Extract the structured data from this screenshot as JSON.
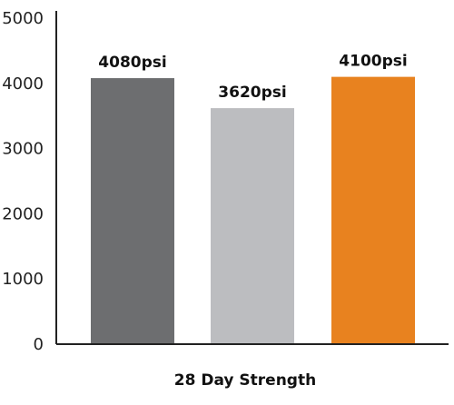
{
  "chart_data": {
    "type": "bar",
    "title": "",
    "xlabel": "28 Day Strength",
    "ylabel": "",
    "ylim": [
      0,
      5000
    ],
    "yticks": [
      0,
      1000,
      2000,
      3000,
      4000,
      5000
    ],
    "grid": false,
    "legend": "none",
    "categories": [
      "",
      "",
      ""
    ],
    "values": [
      4080,
      3620,
      4100
    ],
    "data_labels": [
      "4080psi",
      "3620psi",
      "4100psi"
    ],
    "colors": [
      "#6d6e70",
      "#bcbdc0",
      "#e8821f"
    ]
  }
}
